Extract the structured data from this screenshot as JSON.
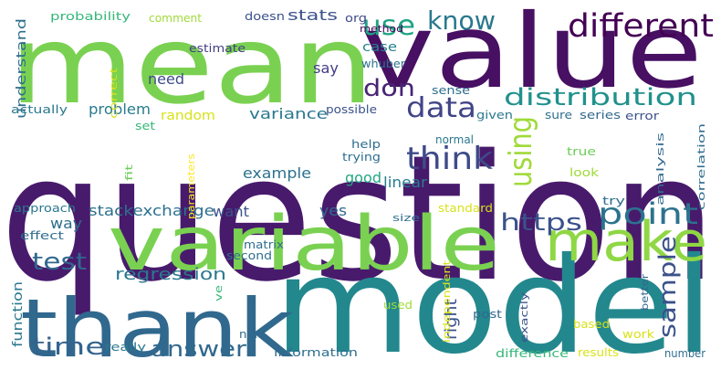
{
  "word_cloud": {
    "words": [
      {
        "text": "question",
        "color": "#481a6c"
      },
      {
        "text": "mean",
        "color": "#7ad151"
      },
      {
        "text": "value",
        "color": "#471063"
      },
      {
        "text": "model",
        "color": "#23888e"
      },
      {
        "text": "variable",
        "color": "#7ad151"
      },
      {
        "text": "thank",
        "color": "#31688e"
      },
      {
        "text": "make",
        "color": "#8fd744"
      },
      {
        "text": "different",
        "color": "#440154"
      },
      {
        "text": "distribution",
        "color": "#21918c"
      },
      {
        "text": "point",
        "color": "#2c728e"
      },
      {
        "text": "sample",
        "color": "#3b528b"
      },
      {
        "text": "think",
        "color": "#3e4a89"
      },
      {
        "text": "know",
        "color": "#2a788e"
      },
      {
        "text": "use",
        "color": "#20a386"
      },
      {
        "text": "don",
        "color": "#482475"
      },
      {
        "text": "data",
        "color": "#414487"
      },
      {
        "text": "using",
        "color": "#a0da39"
      },
      {
        "text": "https",
        "color": "#3b528b"
      },
      {
        "text": "test",
        "color": "#31688e"
      },
      {
        "text": "time",
        "color": "#33638d"
      },
      {
        "text": "answer",
        "color": "#31688e"
      },
      {
        "text": "regression",
        "color": "#2a788e"
      },
      {
        "text": "right",
        "color": "#3b528b"
      },
      {
        "text": "stats",
        "color": "#3b528b"
      },
      {
        "text": "need",
        "color": "#3e4a89"
      },
      {
        "text": "say",
        "color": "#433e85"
      },
      {
        "text": "case",
        "color": "#26828e"
      },
      {
        "text": "problem",
        "color": "#287c8e"
      },
      {
        "text": "variance",
        "color": "#2a788e"
      },
      {
        "text": "random",
        "color": "#d8e219"
      },
      {
        "text": "example",
        "color": "#2c728e"
      },
      {
        "text": "good",
        "color": "#22a785"
      },
      {
        "text": "linear",
        "color": "#287c8e"
      },
      {
        "text": "stackexchange",
        "color": "#2d708e"
      },
      {
        "text": "way",
        "color": "#2e6e8e"
      },
      {
        "text": "want",
        "color": "#3b528b"
      },
      {
        "text": "yes",
        "color": "#30698e"
      },
      {
        "text": "understand",
        "color": "#2e6e8e"
      },
      {
        "text": "function",
        "color": "#2a788e"
      },
      {
        "text": "method",
        "color": "#440154"
      },
      {
        "text": "whuber",
        "color": "#2c728e"
      },
      {
        "text": "probability",
        "color": "#35b779"
      },
      {
        "text": "comment",
        "color": "#a0da39"
      },
      {
        "text": "doesn",
        "color": "#3b528b"
      },
      {
        "text": "org",
        "color": "#3e4a89"
      },
      {
        "text": "estimate",
        "color": "#433e85"
      },
      {
        "text": "correct",
        "color": "#d8e219"
      },
      {
        "text": "actually",
        "color": "#2a788e"
      },
      {
        "text": "set",
        "color": "#35b779"
      },
      {
        "text": "fit",
        "color": "#6ccd5a"
      },
      {
        "text": "parameters",
        "color": "#fde725"
      },
      {
        "text": "possible",
        "color": "#3b528b"
      },
      {
        "text": "sense",
        "color": "#2e6e8e"
      },
      {
        "text": "given",
        "color": "#2a788e"
      },
      {
        "text": "sure",
        "color": "#2e6e8e"
      },
      {
        "text": "series",
        "color": "#31688e"
      },
      {
        "text": "error",
        "color": "#3b528b"
      },
      {
        "text": "correlation",
        "color": "#2e6e8e"
      },
      {
        "text": "help",
        "color": "#2e6e8e"
      },
      {
        "text": "trying",
        "color": "#2e6e8e"
      },
      {
        "text": "normal",
        "color": "#2a788e"
      },
      {
        "text": "true",
        "color": "#6ccd5a"
      },
      {
        "text": "look",
        "color": "#a0da39"
      },
      {
        "text": "analysis",
        "color": "#31688e"
      },
      {
        "text": "try",
        "color": "#2e6e8e"
      },
      {
        "text": "approach",
        "color": "#2a788e"
      },
      {
        "text": "effect",
        "color": "#2e6e8e"
      },
      {
        "text": "matrix",
        "color": "#2e6e8e"
      },
      {
        "text": "second",
        "color": "#2e6e8e"
      },
      {
        "text": "size",
        "color": "#2e6e8e"
      },
      {
        "text": "standard",
        "color": "#d8e219"
      },
      {
        "text": "ve",
        "color": "#35b779"
      },
      {
        "text": "used",
        "color": "#a0da39"
      },
      {
        "text": "independent",
        "color": "#d8e219"
      },
      {
        "text": "post",
        "color": "#31688e"
      },
      {
        "text": "exactly",
        "color": "#3b528b"
      },
      {
        "text": "better",
        "color": "#31688e"
      },
      {
        "text": "based",
        "color": "#d8e219"
      },
      {
        "text": "work",
        "color": "#d8e219"
      },
      {
        "text": "non",
        "color": "#31688e"
      },
      {
        "text": "really",
        "color": "#2a788e"
      },
      {
        "text": "information",
        "color": "#2e6e8e"
      },
      {
        "text": "difference",
        "color": "#35b779"
      },
      {
        "text": "results",
        "color": "#d8e219"
      },
      {
        "text": "number",
        "color": "#2e6e8e"
      }
    ]
  }
}
